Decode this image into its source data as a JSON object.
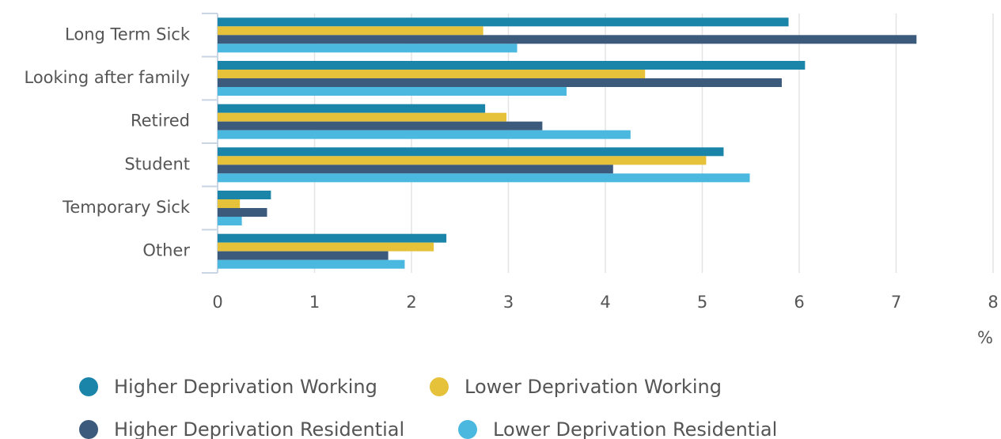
{
  "chart_data": {
    "type": "barh",
    "categories": [
      "Long Term Sick",
      "Looking after family",
      "Retired",
      "Student",
      "Temporary Sick",
      "Other"
    ],
    "series": [
      {
        "name": "Higher Deprivation Working",
        "color": "#1b84a9",
        "values": [
          5.89,
          6.06,
          2.76,
          5.22,
          0.55,
          2.36
        ]
      },
      {
        "name": "Lower Deprivation Working",
        "color": "#e6c13a",
        "values": [
          2.74,
          4.41,
          2.98,
          5.04,
          0.23,
          2.23
        ]
      },
      {
        "name": "Higher Deprivation Residential",
        "color": "#3b5a7c",
        "values": [
          7.21,
          5.82,
          3.35,
          4.08,
          0.51,
          1.76
        ]
      },
      {
        "name": "Lower Deprivation Residential",
        "color": "#4bb8df",
        "values": [
          3.09,
          3.6,
          4.26,
          5.49,
          0.25,
          1.93
        ]
      }
    ],
    "x_label": "%",
    "xlim": [
      0,
      8
    ],
    "xticks": [
      0,
      1,
      2,
      3,
      4,
      5,
      6,
      7,
      8
    ],
    "grid": true
  }
}
